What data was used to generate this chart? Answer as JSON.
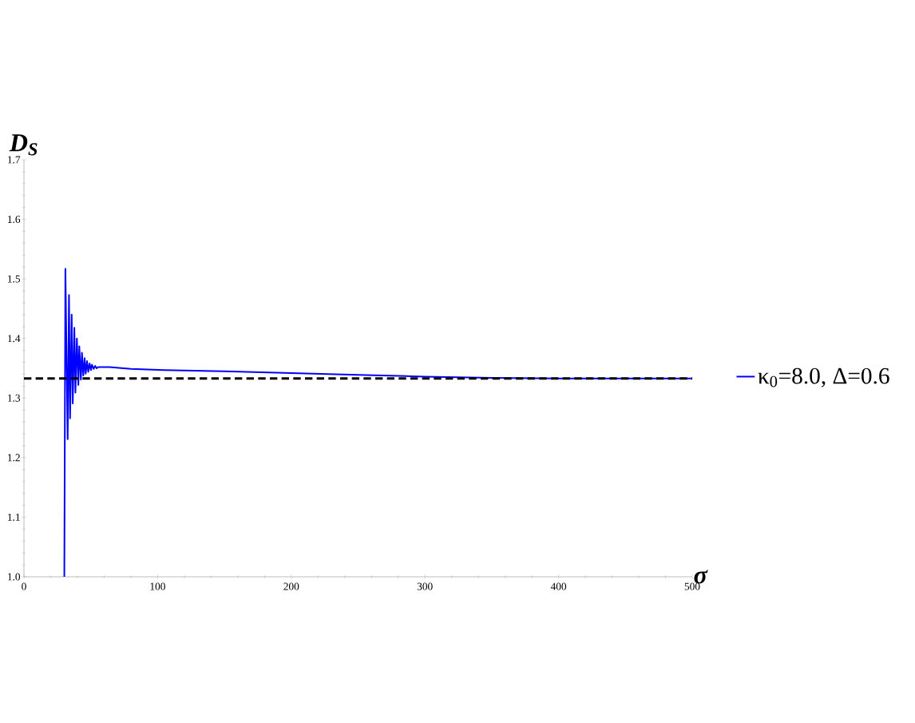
{
  "chart_data": {
    "type": "line",
    "xlabel": "σ",
    "ylabel": "D$_{S}$",
    "xlim": [
      0,
      500
    ],
    "ylim": [
      1.0,
      1.7
    ],
    "xticks": [
      0,
      100,
      200,
      300,
      400,
      500
    ],
    "yticks": [
      {
        "value": 1.0,
        "label": "1.0"
      },
      {
        "value": 1.1,
        "label": "1.1"
      },
      {
        "value": 1.2,
        "label": "1.2"
      },
      {
        "value": 1.3,
        "label": "1.3"
      },
      {
        "value": 1.4,
        "label": "1.4"
      },
      {
        "value": 1.5,
        "label": "1.5"
      },
      {
        "value": 1.6,
        "label": "1.6"
      },
      {
        "value": 1.7,
        "label": "1.7"
      }
    ],
    "series": [
      {
        "name": "κ$_{0}$=8.0, Δ=0.6",
        "color": "#0000ff",
        "x": [
          30.2,
          31.0,
          32.7,
          33.7,
          34.5,
          35.7,
          36.5,
          37.7,
          38.5,
          39.6,
          40.7,
          41.4,
          42.6,
          43.4,
          44.4,
          45.4,
          46.2,
          47.2,
          48.1,
          49.1,
          50.1,
          50.9,
          52.1,
          53.3,
          54.4,
          55.6,
          64,
          80,
          105,
          150,
          200,
          250,
          300,
          350,
          400,
          450,
          500
        ],
        "values": [
          1.0,
          1.517,
          1.231,
          1.473,
          1.266,
          1.44,
          1.291,
          1.418,
          1.309,
          1.4,
          1.322,
          1.387,
          1.331,
          1.376,
          1.338,
          1.367,
          1.341,
          1.362,
          1.344,
          1.358,
          1.347,
          1.356,
          1.349,
          1.354,
          1.35,
          1.352,
          1.352,
          1.349,
          1.347,
          1.345,
          1.342,
          1.339,
          1.336,
          1.334,
          1.333,
          1.333,
          1.333
        ]
      }
    ],
    "ref_lines": [
      {
        "axis": "y",
        "value": 1.333,
        "color": "#000000",
        "line_style": "dashed"
      }
    ],
    "legend": "right",
    "grid": false,
    "marker": "none",
    "line_style": "solid"
  }
}
